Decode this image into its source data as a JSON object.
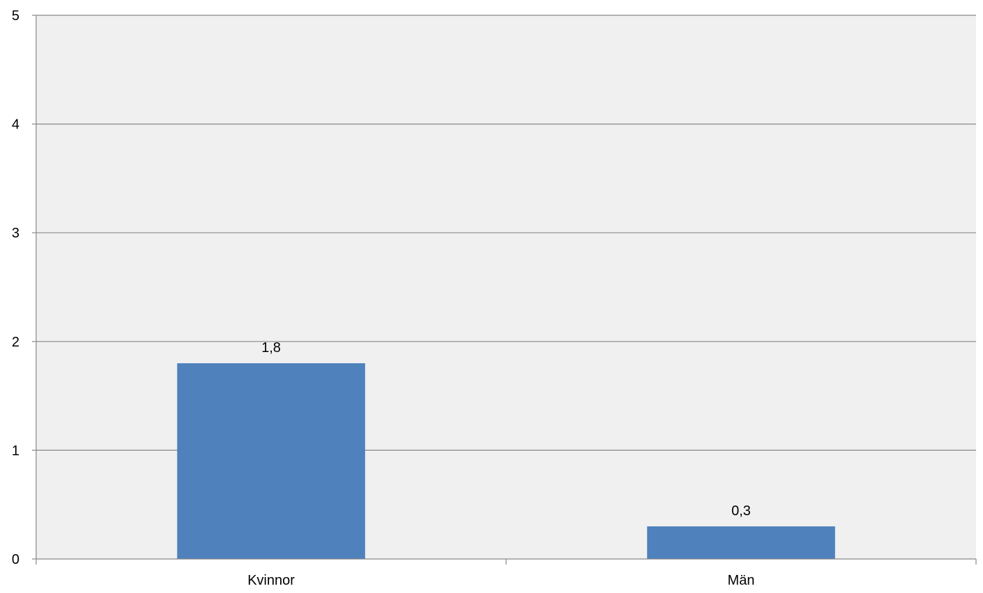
{
  "chart_data": {
    "type": "bar",
    "categories": [
      "Kvinnor",
      "Män"
    ],
    "values": [
      1.8,
      0.3
    ],
    "data_labels": [
      "1,8",
      "0,3"
    ],
    "ylim": [
      0,
      5
    ],
    "yticks": [
      0,
      1,
      2,
      3,
      4,
      5
    ],
    "ytick_labels": [
      "0",
      "1",
      "2",
      "3",
      "4",
      "5"
    ],
    "grid": true,
    "legend": "none",
    "colors": {
      "bar": "#4F81BD",
      "plot_background": "#F0F0F0",
      "gridline": "#888888",
      "axis": "#888888"
    }
  }
}
